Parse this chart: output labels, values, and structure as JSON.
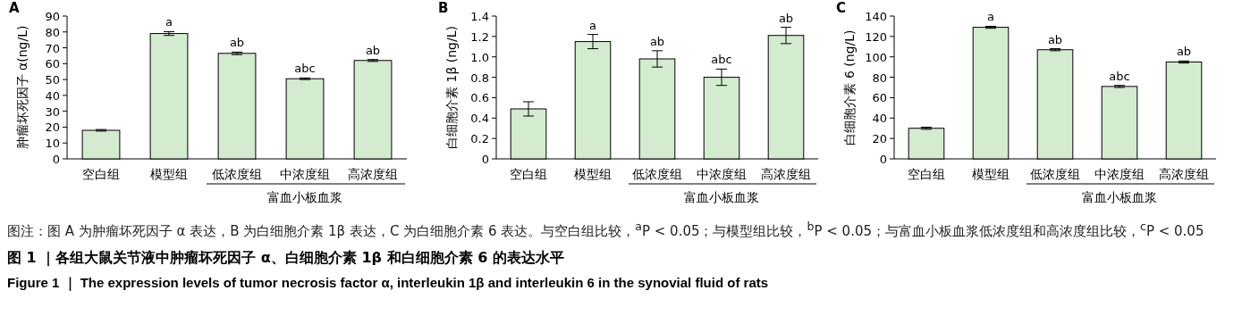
{
  "chart_data": [
    {
      "type": "bar",
      "title": "A",
      "ylabel": "肿瘤坏死因子 α(ng/L)",
      "categories": [
        "空白组",
        "模型组",
        "低浓度组",
        "中浓度组",
        "高浓度组"
      ],
      "values": [
        18,
        79,
        66.5,
        50.5,
        62
      ],
      "errors": [
        0.5,
        1.2,
        0.8,
        0.5,
        0.6
      ],
      "color": "#d3ebcf",
      "ylim": [
        0,
        90
      ],
      "yticks": [
        0,
        10,
        20,
        30,
        40,
        50,
        60,
        70,
        80,
        90
      ],
      "annotations": [
        {
          "text": "a",
          "x": "模型组",
          "y": 79
        },
        {
          "text": "ab",
          "x": "低浓度组",
          "y": 66.5
        },
        {
          "text": "abc",
          "x": "中浓度组",
          "y": 50.5
        },
        {
          "text": "ab",
          "x": "高浓度组",
          "y": 62
        },
        "富血小板血浆"
      ]
    },
    {
      "type": "bar",
      "title": "B",
      "ylabel": "白细胞介素 1β (ng/L)",
      "categories": [
        "空白组",
        "模型组",
        "低浓度组",
        "中浓度组",
        "高浓度组"
      ],
      "values": [
        0.49,
        1.15,
        0.98,
        0.8,
        1.21
      ],
      "errors": [
        0.07,
        0.07,
        0.08,
        0.08,
        0.08
      ],
      "color": "#d3ebcf",
      "ylim": [
        0,
        1.4
      ],
      "yticks": [
        {
          "value": 0,
          "label": "0"
        },
        0.2,
        0.4,
        0.6,
        0.8,
        {
          "value": 1,
          "label": "1.0"
        },
        1.2,
        1.4
      ],
      "annotations": [
        {
          "text": "a",
          "x": "模型组",
          "y": 1.15
        },
        {
          "text": "ab",
          "x": "低浓度组",
          "y": 0.98
        },
        {
          "text": "abc",
          "x": "中浓度组",
          "y": 0.8
        },
        {
          "text": "ab",
          "x": "高浓度组",
          "y": 1.21
        },
        "富血小板血浆"
      ]
    },
    {
      "type": "bar",
      "title": "C",
      "ylabel": "白细胞介素 6 (ng/L)",
      "categories": [
        "空白组",
        "模型组",
        "低浓度组",
        "中浓度组",
        "高浓度组"
      ],
      "values": [
        30,
        129,
        107,
        71,
        95
      ],
      "errors": [
        1,
        1,
        1,
        1,
        1
      ],
      "color": "#d3ebcf",
      "ylim": [
        0,
        140
      ],
      "yticks": [
        0,
        20,
        40,
        60,
        80,
        100,
        120,
        140
      ],
      "annotations": [
        {
          "text": "a",
          "x": "模型组",
          "y": 129
        },
        {
          "text": "ab",
          "x": "低浓度组",
          "y": 107
        },
        {
          "text": "abc",
          "x": "中浓度组",
          "y": 71
        },
        {
          "text": "ab",
          "x": "高浓度组",
          "y": 95
        },
        "富血小板血浆"
      ]
    },
    {
      "type": "other",
      "annotations": [
        "图注：图 A 为肿瘤坏死因子 α 表达，B 为白细胞介素 1β 表达，C 为白细胞介素 6 表达。与空白组比较，$^{a}$P < 0.05；与模型组比较，$^{b}$P < 0.05；与富血小板血浆低浓度组和高浓度组比较，$^{c}$P < 0.05",
        "图 1 ｜各组大鼠关节液中肿瘤坏死因子 α、白细胞介素 1β 和白细胞介素 6 的表达水平",
        "Figure 1 ｜ The expression levels of tumor necrosis factor α, interleukin 1β and interleukin 6 in the synovial fluid of rats"
      ]
    }
  ]
}
